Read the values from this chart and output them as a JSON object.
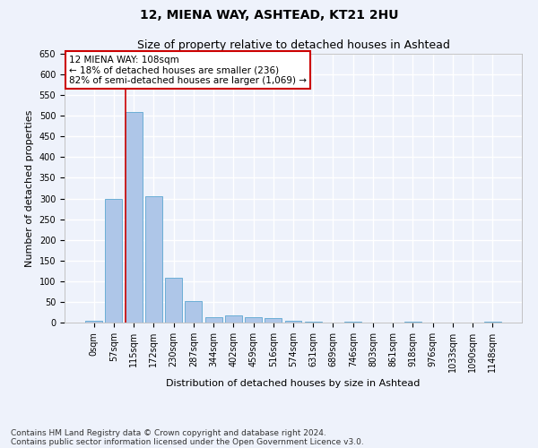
{
  "title": "12, MIENA WAY, ASHTEAD, KT21 2HU",
  "subtitle": "Size of property relative to detached houses in Ashtead",
  "xlabel": "Distribution of detached houses by size in Ashtead",
  "ylabel": "Number of detached properties",
  "bar_labels": [
    "0sqm",
    "57sqm",
    "115sqm",
    "172sqm",
    "230sqm",
    "287sqm",
    "344sqm",
    "402sqm",
    "459sqm",
    "516sqm",
    "574sqm",
    "631sqm",
    "689sqm",
    "746sqm",
    "803sqm",
    "861sqm",
    "918sqm",
    "976sqm",
    "1033sqm",
    "1090sqm",
    "1148sqm"
  ],
  "bar_values": [
    5,
    300,
    510,
    305,
    108,
    53,
    14,
    17,
    14,
    10,
    5,
    3,
    0,
    2,
    0,
    0,
    3,
    0,
    0,
    0,
    3
  ],
  "bar_color": "#aec6e8",
  "bar_edge_color": "#6baed6",
  "vline_color": "#cc0000",
  "vline_x_index": 2,
  "ylim": [
    0,
    650
  ],
  "yticks": [
    0,
    50,
    100,
    150,
    200,
    250,
    300,
    350,
    400,
    450,
    500,
    550,
    600,
    650
  ],
  "annotation_text": "12 MIENA WAY: 108sqm\n← 18% of detached houses are smaller (236)\n82% of semi-detached houses are larger (1,069) →",
  "annotation_box_color": "#ffffff",
  "annotation_box_edge": "#cc0000",
  "footnote_line1": "Contains HM Land Registry data © Crown copyright and database right 2024.",
  "footnote_line2": "Contains public sector information licensed under the Open Government Licence v3.0.",
  "bg_color": "#eef2fb",
  "grid_color": "#ffffff",
  "title_fontsize": 10,
  "subtitle_fontsize": 9,
  "axis_label_fontsize": 8,
  "tick_fontsize": 7,
  "annotation_fontsize": 7.5,
  "footnote_fontsize": 6.5
}
